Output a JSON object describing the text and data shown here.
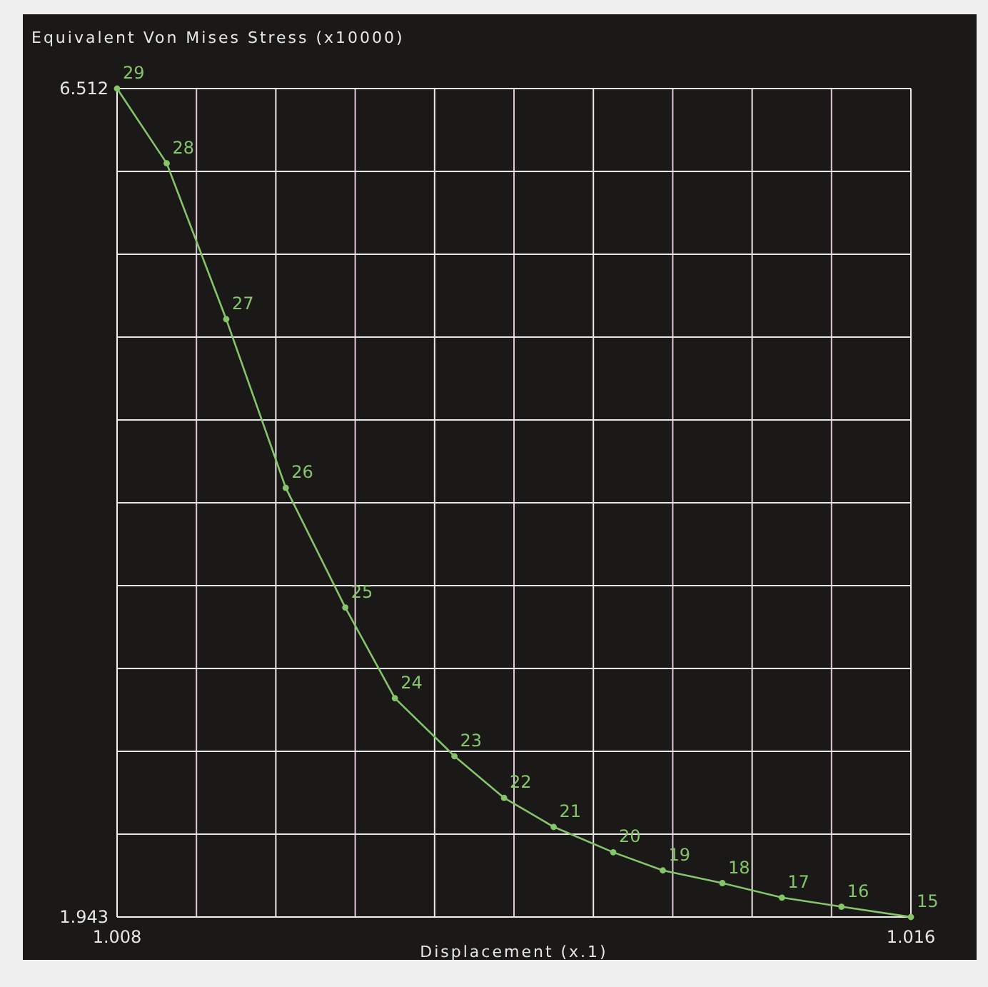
{
  "chart_data": {
    "type": "line",
    "ylabel": "Equivalent Von Mises Stress (x10000)",
    "xlabel": "Displacement (x.1)",
    "x": [
      1.008,
      1.0085,
      1.0091,
      1.0097,
      1.0103,
      1.0108,
      1.0114,
      1.0119,
      1.0124,
      1.013,
      1.0135,
      1.0141,
      1.0147,
      1.0153,
      1.016
    ],
    "series": [
      {
        "color": "#86c46a",
        "values": [
          6.512,
          6.1,
          5.24,
          4.31,
          3.65,
          3.15,
          2.83,
          2.6,
          2.44,
          2.3,
          2.2,
          2.13,
          2.05,
          2.0,
          1.943
        ]
      }
    ],
    "xlim": [
      1.008,
      1.016
    ],
    "xticks": [
      1.008,
      {
        "value": 1.0088,
        "label": null
      },
      {
        "value": 1.0096,
        "label": null
      },
      {
        "value": 1.0104,
        "label": null
      },
      {
        "value": 1.0112,
        "label": null
      },
      {
        "value": 1.012,
        "label": null
      },
      {
        "value": 1.0128,
        "label": null
      },
      {
        "value": 1.0136,
        "label": null
      },
      {
        "value": 1.0144,
        "label": null
      },
      {
        "value": 1.0152,
        "label": null
      },
      1.016
    ],
    "ylim": [
      1.943,
      6.512
    ],
    "yticks": [
      1.943,
      {
        "value": 2.3999,
        "label": null
      },
      {
        "value": 2.8568,
        "label": null
      },
      {
        "value": 3.3137,
        "label": null
      },
      {
        "value": 3.7706,
        "label": null
      },
      {
        "value": 4.2275,
        "label": null
      },
      {
        "value": 4.6844,
        "label": null
      },
      {
        "value": 5.1413,
        "label": null
      },
      {
        "value": 5.5982,
        "label": null
      },
      {
        "value": 6.0551,
        "label": null
      },
      6.512
    ],
    "grid": true,
    "marker": "circle",
    "line_style": "solid",
    "annotations": [
      {
        "text": "29",
        "x": 1.008,
        "y": 6.512
      },
      {
        "text": "28",
        "x": 1.0085,
        "y": 6.1
      },
      {
        "text": "27",
        "x": 1.0091,
        "y": 5.24
      },
      {
        "text": "26",
        "x": 1.0097,
        "y": 4.31
      },
      {
        "text": "25",
        "x": 1.0103,
        "y": 3.65
      },
      {
        "text": "24",
        "x": 1.0108,
        "y": 3.15
      },
      {
        "text": "23",
        "x": 1.0114,
        "y": 2.83
      },
      {
        "text": "22",
        "x": 1.0119,
        "y": 2.6
      },
      {
        "text": "21",
        "x": 1.0124,
        "y": 2.44
      },
      {
        "text": "20",
        "x": 1.013,
        "y": 2.3
      },
      {
        "text": "19",
        "x": 1.0135,
        "y": 2.2
      },
      {
        "text": "18",
        "x": 1.0141,
        "y": 2.13
      },
      {
        "text": "17",
        "x": 1.0147,
        "y": 2.05
      },
      {
        "text": "16",
        "x": 1.0153,
        "y": 2.0
      },
      {
        "text": "15",
        "x": 1.016,
        "y": 1.943
      }
    ]
  }
}
